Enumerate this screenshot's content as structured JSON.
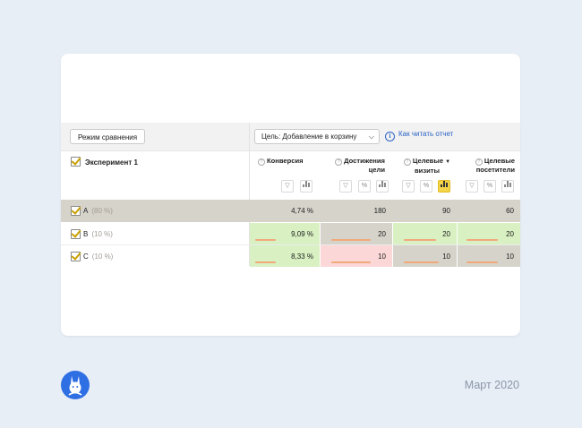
{
  "toolbar": {
    "compare_button": "Режим сравнения",
    "goal_select": "Цель: Добавление в корзину",
    "help_link": "Как читать отчет"
  },
  "table": {
    "experiment_label": "Эксперимент 1",
    "columns": [
      {
        "line1": "Конверсия",
        "line2": ""
      },
      {
        "line1": "Достижения",
        "line2": "цели"
      },
      {
        "line1": "Целевые",
        "line2": "визиты",
        "sort": "▼"
      },
      {
        "line1": "Целевые",
        "line2": "посетители"
      }
    ],
    "rows": [
      {
        "name": "A",
        "share": "(80 %)",
        "values": [
          "4,74 %",
          "180",
          "90",
          "60"
        ]
      },
      {
        "name": "B",
        "share": "(10 %)",
        "values": [
          "9,09 %",
          "20",
          "20",
          "20"
        ],
        "bars": [
          0.3,
          0.55,
          0.5,
          0.5
        ]
      },
      {
        "name": "C",
        "share": "(10 %)",
        "values": [
          "8,33 %",
          "10",
          "10",
          "10"
        ],
        "bars": [
          0.3,
          0.55,
          0.55,
          0.5
        ]
      }
    ]
  },
  "footer": {
    "date": "Март 2020"
  },
  "colors": {
    "background": "#e8eef6",
    "total_row": "#d6d3cb",
    "positive": "#d8f0c2",
    "negative": "#fbd7d7",
    "accent": "#f5d54a",
    "link": "#2b63c4"
  }
}
